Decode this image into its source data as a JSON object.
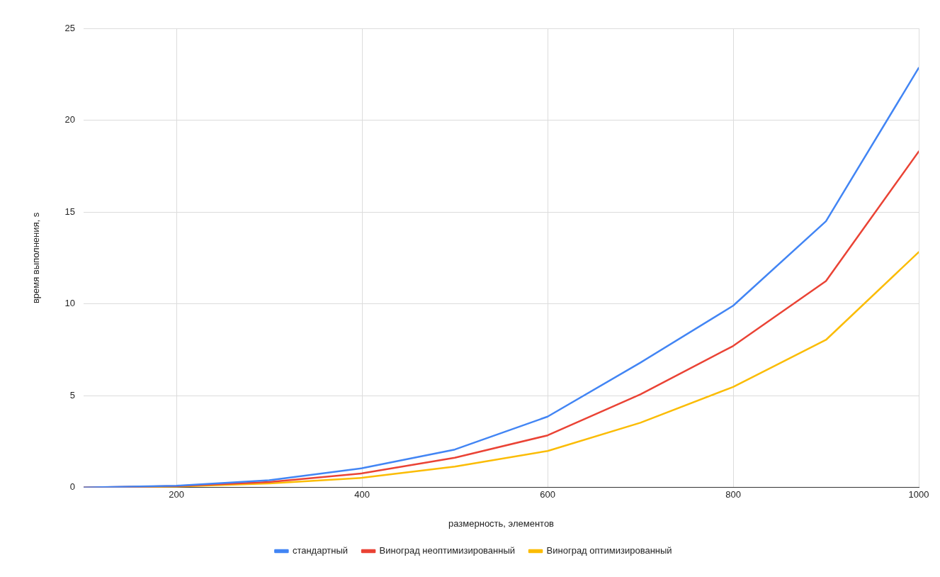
{
  "chart_data": {
    "type": "line",
    "xlabel": "размерность, элементов",
    "ylabel": "время выполнения, s",
    "x": [
      100,
      200,
      300,
      400,
      500,
      600,
      700,
      800,
      900,
      1000
    ],
    "series": [
      {
        "name": "стандартный",
        "color": "#4285f4",
        "values": [
          0,
          0.1,
          0.4,
          1.05,
          2.07,
          3.86,
          6.8,
          9.9,
          14.5,
          22.85
        ]
      },
      {
        "name": "Виноград неоптимизированный",
        "color": "#ea4335",
        "values": [
          0,
          0.08,
          0.3,
          0.77,
          1.62,
          2.84,
          5.07,
          7.71,
          11.24,
          18.3
        ]
      },
      {
        "name": "Виноград оптимизированный",
        "color": "#fbbc04",
        "values": [
          0,
          0.05,
          0.22,
          0.53,
          1.14,
          1.99,
          3.53,
          5.48,
          8.04,
          12.82
        ]
      }
    ],
    "xlim": [
      100,
      1000
    ],
    "xticks": [
      200,
      400,
      600,
      800,
      1000
    ],
    "ylim": [
      0,
      25
    ],
    "yticks": [
      0,
      5,
      10,
      15,
      20,
      25
    ],
    "grid": true,
    "legend": "bottom",
    "marker": "none",
    "line_style": "solid"
  }
}
